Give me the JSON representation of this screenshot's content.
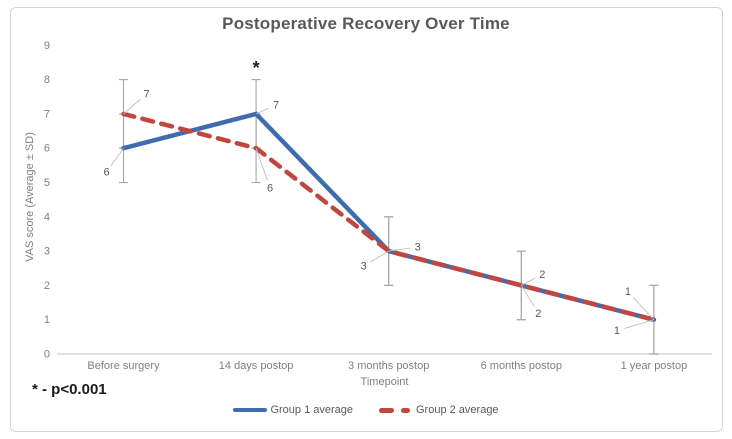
{
  "chart_data": {
    "type": "line",
    "title": "Postoperative Recovery Over Time",
    "xlabel": "Timepoint",
    "ylabel": "VAS score (Average ± SD)",
    "ylim": [
      0,
      9
    ],
    "ytick_step": 1,
    "grid": false,
    "legend_position": "bottom",
    "categories": [
      "Before surgery",
      "14 days postop",
      "3 months postop",
      "6 months postop",
      "1 year postop"
    ],
    "series": [
      {
        "name": "Group 1 average",
        "values": [
          6,
          7,
          3,
          2,
          1
        ],
        "color": "#3e6cad",
        "style": "solid"
      },
      {
        "name": "Group 2 average",
        "values": [
          7,
          6,
          3,
          2,
          1
        ],
        "color": "#c0463e",
        "style": "dashed"
      }
    ],
    "error_sd": 1,
    "error_bar_color": "#a6a6a6",
    "data_labels_shown": true,
    "annotations": {
      "significance_marker": "*",
      "significance_at": "14 days postop",
      "footnote": "* - p<0.001"
    }
  }
}
